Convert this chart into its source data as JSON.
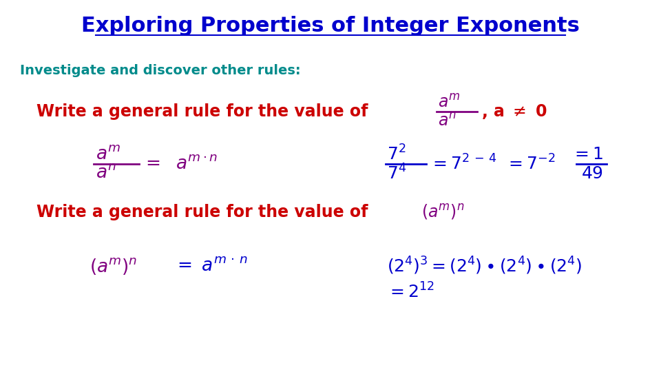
{
  "title": "Exploring Properties of Integer Exponents",
  "title_color": "#0000CD",
  "title_fontsize": 22,
  "bg_color": "#ffffff",
  "subtitle": "Investigate and discover other rules:",
  "subtitle_color": "#008B8B",
  "subtitle_fontsize": 14,
  "red_color": "#CC0000",
  "purple_color": "#800080",
  "blue_color": "#0000CD"
}
